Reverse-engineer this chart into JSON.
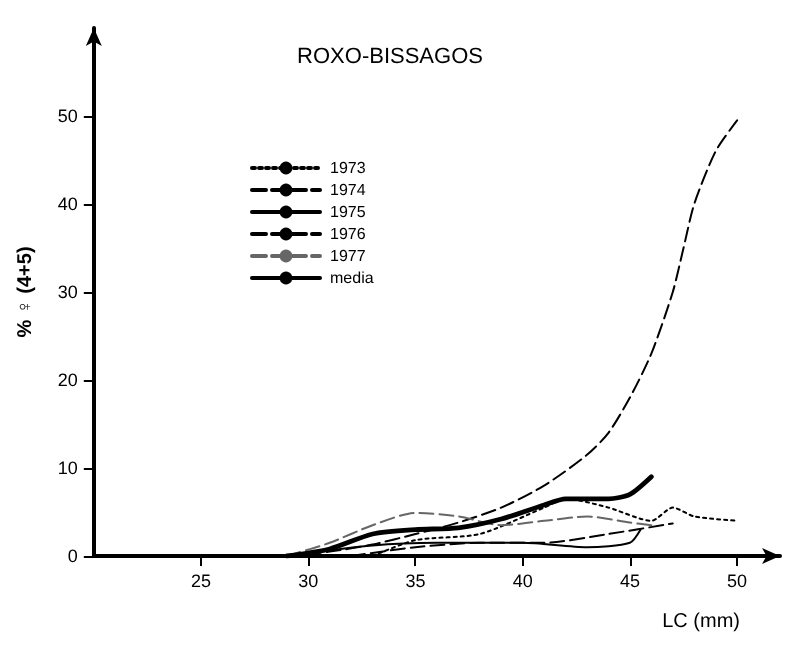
{
  "chart_data": {
    "type": "line",
    "title": "ROXO-BISSAGOS",
    "xlabel": "LC (mm)",
    "ylabel": "% ♀ (4+5)",
    "xlim": [
      20,
      52
    ],
    "xticks": [
      25,
      30,
      35,
      40,
      45,
      50
    ],
    "ylim": [
      0,
      60
    ],
    "yticks": [
      0,
      10,
      20,
      30,
      40,
      50
    ],
    "grid": false,
    "legend": "top left",
    "marker": "none",
    "series": [
      {
        "name": "1973",
        "color": "#000000",
        "line_style": "dotted",
        "x": [
          33,
          35,
          38,
          41,
          42,
          44,
          46,
          47,
          48,
          50
        ],
        "values": [
          0,
          1.8,
          2.5,
          5.5,
          6.5,
          5.5,
          4,
          5.5,
          4.5,
          4
        ]
      },
      {
        "name": "1974",
        "color": "#000000",
        "line_style": "dashed",
        "x": [
          29,
          31,
          33,
          35,
          37,
          39,
          41,
          43,
          44,
          45,
          46,
          47,
          47.5,
          48,
          49,
          50
        ],
        "values": [
          0,
          0.5,
          1.3,
          2.5,
          3.8,
          5.5,
          8,
          11.5,
          14,
          18,
          23,
          30,
          35,
          40,
          46,
          49.5
        ]
      },
      {
        "name": "1975",
        "color": "#000000",
        "line_style": "solid",
        "x": [
          29,
          33,
          36,
          40,
          43,
          45,
          45.5
        ],
        "values": [
          0,
          1.2,
          1.5,
          1.5,
          1,
          1.5,
          3
        ]
      },
      {
        "name": "1976",
        "color": "#000000",
        "line_style": "dashed",
        "x": [
          32,
          35,
          38,
          41,
          44,
          47
        ],
        "values": [
          0,
          1,
          1.5,
          1.5,
          2.5,
          3.7
        ]
      },
      {
        "name": "1977",
        "color": "#666666",
        "line_style": "dashed",
        "x": [
          29,
          31,
          33,
          35,
          37,
          39,
          41,
          43,
          45,
          46
        ],
        "values": [
          0,
          1.5,
          3.5,
          4.9,
          4.5,
          3.5,
          4,
          4.5,
          3.8,
          3.5
        ]
      },
      {
        "name": "media",
        "color": "#000000",
        "line_style": "solid",
        "x": [
          29,
          31,
          33,
          35,
          37,
          39,
          41,
          42,
          44,
          45,
          46
        ],
        "values": [
          0,
          0.8,
          2.5,
          3,
          3.2,
          4.2,
          5.8,
          6.5,
          6.5,
          7,
          9
        ]
      }
    ]
  }
}
